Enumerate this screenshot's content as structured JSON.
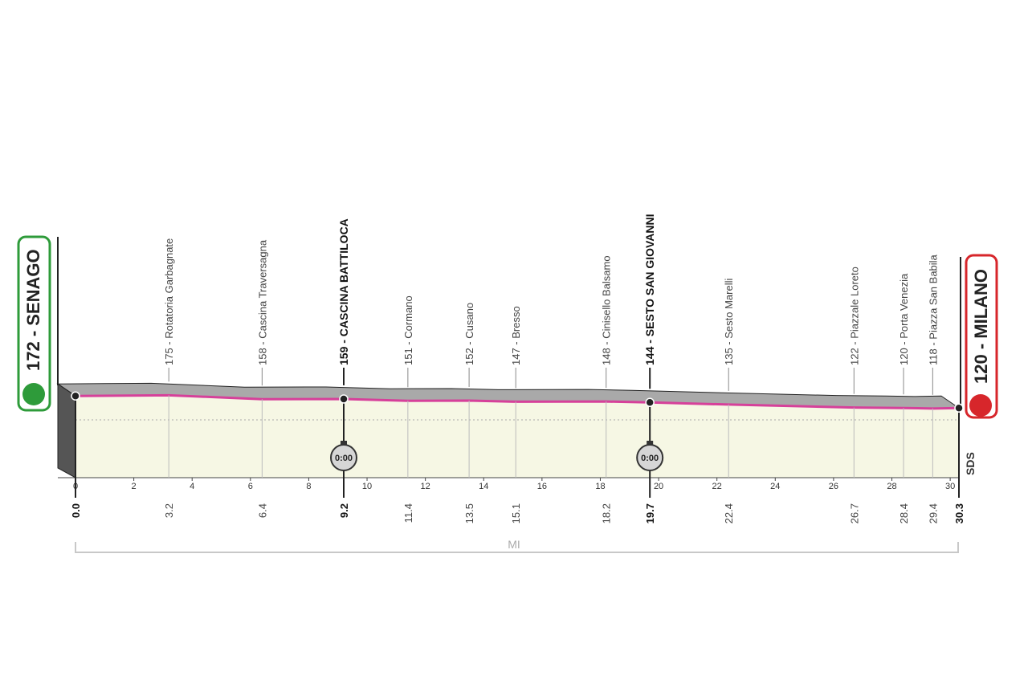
{
  "chart_data": {
    "type": "area",
    "start_label": "172 - SENAGO",
    "finish_label": "120 - MILANO",
    "x": [
      0,
      3.2,
      6.4,
      9.2,
      11.4,
      13.5,
      15.1,
      18.2,
      19.7,
      22.4,
      26.7,
      28.4,
      29.4,
      30.3
    ],
    "values": [
      172,
      175,
      158,
      159,
      151,
      152,
      147,
      148,
      144,
      135,
      122,
      120,
      118,
      120
    ],
    "labels": [
      null,
      "175 - Rotatoria Garbagnate",
      "158 - Cascina Traversagna",
      "159 - CASCINA BATTILOCA",
      "151 - Cormano",
      "152 - Cusano",
      "147 - Bresso",
      "148 - Cinisello Balsamo",
      "144 - SESTO SAN GIOVANNI",
      "135 - Sesto Marelli",
      "122 - Piazzale Loreto",
      "120 - Porta Venezia",
      "118 - Piazza San Babila",
      null
    ],
    "bold": [
      true,
      false,
      false,
      true,
      false,
      false,
      false,
      false,
      true,
      false,
      false,
      false,
      false,
      true
    ],
    "xlim": [
      0,
      30.3
    ],
    "xticks": [
      0,
      2,
      4,
      6,
      8,
      10,
      12,
      14,
      16,
      18,
      20,
      22,
      24,
      26,
      28,
      30
    ],
    "distance_ticks": [
      {
        "value": 0,
        "label": "0.0"
      },
      3.2,
      6.4,
      9.2,
      11.4,
      13.5,
      15.1,
      18.2,
      19.7,
      22.4,
      26.7,
      28.4,
      29.4,
      30.3
    ],
    "ylim": [
      -180,
      840
    ],
    "time_checks": [
      {
        "x": 9.2,
        "label": "0:00"
      },
      {
        "x": 19.7,
        "label": "0:00"
      }
    ],
    "axis_label": "MI",
    "logo": "SDS",
    "line_color": "#d6409a",
    "fill_color": "#f6f7e4",
    "top_color": "#a9a9a9",
    "start_color": "#2e9b3a",
    "finish_color": "#d7262b"
  }
}
